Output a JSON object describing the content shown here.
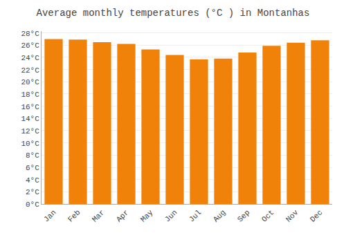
{
  "chart_data": {
    "type": "bar",
    "title": "Average monthly temperatures (°C ) in Montanhas",
    "categories": [
      "Jan",
      "Feb",
      "Mar",
      "Apr",
      "May",
      "Jun",
      "Jul",
      "Aug",
      "Sep",
      "Oct",
      "Nov",
      "Dec"
    ],
    "values": [
      27.0,
      26.9,
      26.5,
      26.2,
      25.3,
      24.4,
      23.7,
      23.8,
      24.8,
      25.9,
      26.4,
      26.8
    ],
    "color": "#F0820A",
    "ylim": [
      0,
      28.3
    ],
    "yticks": [
      {
        "value": 0,
        "label": "0°C"
      },
      {
        "value": 2,
        "label": "2°C"
      },
      {
        "value": 4,
        "label": "4°C"
      },
      {
        "value": 6,
        "label": "6°C"
      },
      {
        "value": 8,
        "label": "8°C"
      },
      {
        "value": 10,
        "label": "10°C"
      },
      {
        "value": 12,
        "label": "12°C"
      },
      {
        "value": 14,
        "label": "14°C"
      },
      {
        "value": 16,
        "label": "16°C"
      },
      {
        "value": 18,
        "label": "18°C"
      },
      {
        "value": 20,
        "label": "20°C"
      },
      {
        "value": 22,
        "label": "22°C"
      },
      {
        "value": 24,
        "label": "24°C"
      },
      {
        "value": 26,
        "label": "26°C"
      },
      {
        "value": 28,
        "label": "28°C"
      }
    ],
    "grid": true
  }
}
